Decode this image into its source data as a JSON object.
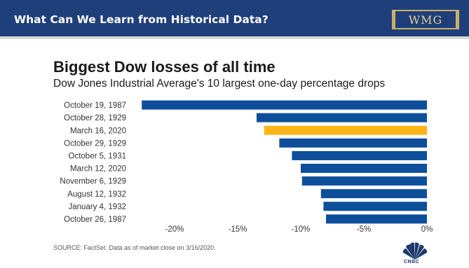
{
  "header": {
    "title": "What Can We Learn from Historical Data?",
    "logo_text": "WMG"
  },
  "source_note": "SOURCE: FactSet. Data as of market close on 3/16/2020.",
  "brand": "CNBC",
  "colors": {
    "header_bg": "#1f3f7a",
    "bar": "#0d4f9a",
    "highlight": "#fcb416"
  },
  "chart_data": {
    "type": "bar",
    "orientation": "horizontal",
    "title": "Biggest Dow losses of all time",
    "subtitle": "Dow Jones Industrial Average's 10 largest one-day percentage drops",
    "categories": [
      "October 19, 1987",
      "October 28, 1929",
      "March 16, 2020",
      "October 29, 1929",
      "October 5, 1931",
      "March 12, 2020",
      "November 6, 1929",
      "August 12, 1932",
      "January 4, 1932",
      "October 26, 1987"
    ],
    "values": [
      -22.6,
      -13.5,
      -12.9,
      -11.7,
      -10.7,
      -10.0,
      -9.9,
      -8.4,
      -8.2,
      -8.0
    ],
    "highlight_index": 2,
    "xlim": [
      -25,
      0
    ],
    "xticks": [
      -20,
      -15,
      -10,
      -5,
      0
    ],
    "xtick_labels": [
      "-20%",
      "-15%",
      "-10%",
      "-5%",
      "0%"
    ],
    "xlabel": "",
    "ylabel": "",
    "grid": false
  }
}
